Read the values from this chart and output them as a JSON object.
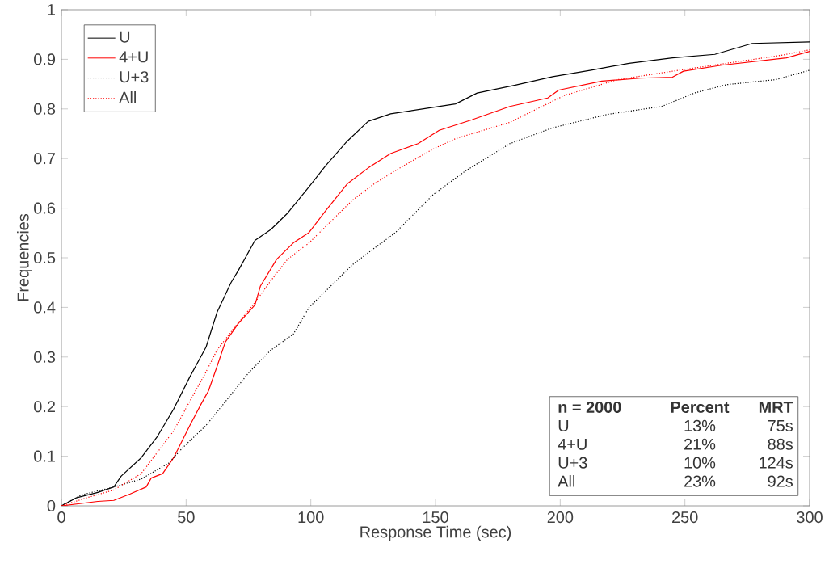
{
  "chart_data": {
    "type": "line",
    "xlabel": "Response Time (sec)",
    "ylabel": "Frequencies",
    "xlim": [
      0,
      300
    ],
    "ylim": [
      0,
      1
    ],
    "xticks": [
      0,
      50,
      100,
      150,
      200,
      250,
      300
    ],
    "yticks": [
      0,
      0.1,
      0.2,
      0.3,
      0.4,
      0.5,
      0.6,
      0.7,
      0.8,
      0.9,
      1
    ],
    "legend": "top left",
    "grid": false,
    "series": [
      {
        "name": "U",
        "color": "#000000",
        "line_style": "solid",
        "x": [
          0,
          5.9,
          14.6,
          21,
          24,
          32,
          38.5,
          45,
          51.5,
          58,
          62.4,
          68,
          71,
          77.6,
          84,
          90.7,
          99.3,
          106,
          114.6,
          123,
          132,
          145,
          158,
          166.7,
          182,
          197,
          212.4,
          227.6,
          245,
          262,
          277,
          300
        ],
        "values": [
          0,
          0.016,
          0.027,
          0.038,
          0.06,
          0.097,
          0.14,
          0.195,
          0.26,
          0.32,
          0.39,
          0.45,
          0.475,
          0.535,
          0.557,
          0.59,
          0.643,
          0.686,
          0.735,
          0.775,
          0.79,
          0.8,
          0.81,
          0.832,
          0.848,
          0.865,
          0.878,
          0.892,
          0.903,
          0.91,
          0.932,
          0.935
        ]
      },
      {
        "name": "4+U",
        "color": "#ff0000",
        "line_style": "solid",
        "x": [
          0,
          14.6,
          21,
          27.6,
          34,
          36,
          40.6,
          45,
          51.5,
          56,
          59,
          62.4,
          65.7,
          71,
          77.6,
          79.8,
          86.3,
          93,
          99.3,
          106,
          114.6,
          123,
          132,
          143,
          151.5,
          164.6,
          179.8,
          195,
          199.4,
          216.7,
          232,
          245,
          249.4,
          264.6,
          290.7,
          300
        ],
        "values": [
          0,
          0.009,
          0.011,
          0.024,
          0.038,
          0.056,
          0.065,
          0.097,
          0.162,
          0.205,
          0.232,
          0.281,
          0.33,
          0.368,
          0.405,
          0.443,
          0.497,
          0.53,
          0.551,
          0.595,
          0.649,
          0.681,
          0.71,
          0.73,
          0.757,
          0.778,
          0.805,
          0.822,
          0.838,
          0.856,
          0.862,
          0.864,
          0.876,
          0.888,
          0.903,
          0.916
        ]
      },
      {
        "name": "U+3",
        "color": "#000000",
        "line_style": "dotted",
        "x": [
          0,
          8,
          21,
          32,
          43,
          49,
          58,
          66.7,
          75.4,
          84,
          93,
          99.3,
          108,
          116.7,
          125.4,
          134,
          149,
          162,
          179.8,
          197,
          219,
          240.7,
          253.8,
          266.8,
          286.4,
          300
        ],
        "values": [
          0,
          0.022,
          0.038,
          0.054,
          0.086,
          0.119,
          0.162,
          0.216,
          0.27,
          0.314,
          0.346,
          0.4,
          0.443,
          0.486,
          0.519,
          0.551,
          0.627,
          0.675,
          0.73,
          0.762,
          0.789,
          0.805,
          0.832,
          0.849,
          0.859,
          0.878
        ]
      },
      {
        "name": "All",
        "color": "#ff0000",
        "line_style": "dotted",
        "x": [
          0,
          10,
          21,
          32,
          38.5,
          45,
          51.5,
          58,
          62.4,
          69,
          77.6,
          84,
          90.7,
          99.3,
          108,
          116.7,
          125.4,
          134,
          149,
          158,
          179.8,
          201.6,
          223,
          245,
          266.8,
          288.5,
          300
        ],
        "values": [
          0,
          0.016,
          0.032,
          0.065,
          0.108,
          0.151,
          0.211,
          0.27,
          0.314,
          0.357,
          0.41,
          0.454,
          0.497,
          0.53,
          0.573,
          0.616,
          0.649,
          0.676,
          0.719,
          0.74,
          0.773,
          0.827,
          0.859,
          0.876,
          0.892,
          0.908,
          0.919
        ]
      }
    ],
    "annotations": [
      "n = 2000",
      "Percent",
      "MRT",
      "U",
      "13%",
      "75s",
      "4+U",
      "21%",
      "88s",
      "U+3",
      "10%",
      "124s",
      "All",
      "23%",
      "92s"
    ]
  }
}
